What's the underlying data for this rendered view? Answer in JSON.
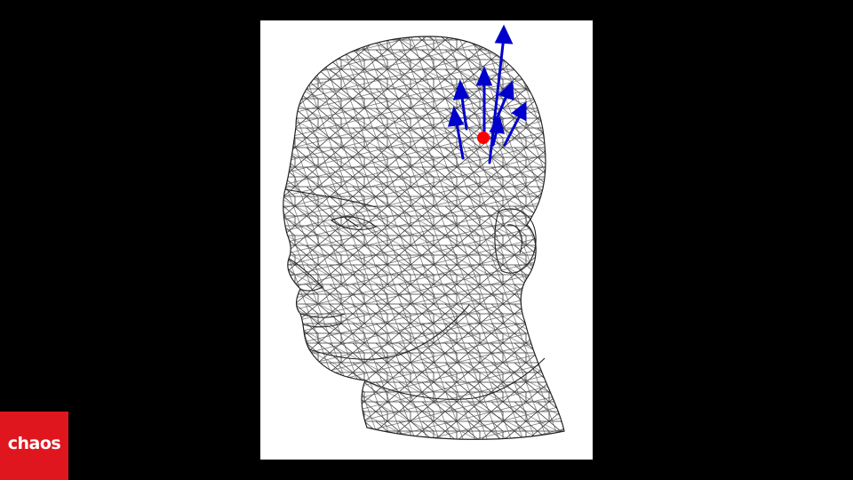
{
  "slide": {
    "background_color": "#000000"
  },
  "figure": {
    "icon": "wireframe-head-mesh-icon",
    "mesh_color": "#333333",
    "sample_point_color": "#ff0000",
    "ray_color": "#0000cc"
  },
  "logo": {
    "text": "chaos",
    "background_color": "#e0161f",
    "text_color": "#ffffff"
  }
}
